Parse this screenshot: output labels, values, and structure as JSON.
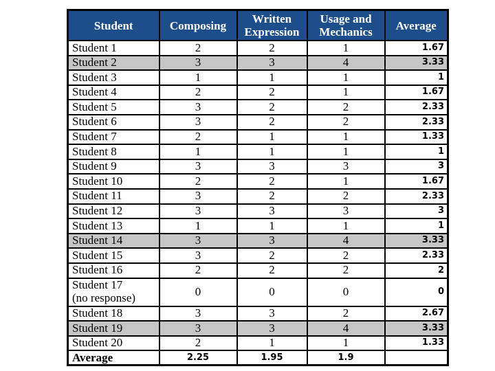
{
  "colors": {
    "header_bg": "#1E4D8C",
    "header_text": "#FFFFFF",
    "row_bg": "#FFFFFF",
    "row_highlight_bg": "#C6C6C6",
    "border": "#000000",
    "text": "#000000"
  },
  "table": {
    "columns": [
      "Student",
      "Composing",
      "Written Expression",
      "Usage and Mechanics",
      "Average"
    ],
    "rows": [
      {
        "name": "Student 1",
        "composing": "2",
        "written": "2",
        "usage": "1",
        "average": "1.67",
        "highlight": false
      },
      {
        "name": "Student 2",
        "composing": "3",
        "written": "3",
        "usage": "4",
        "average": "3.33",
        "highlight": true
      },
      {
        "name": "Student 3",
        "composing": "1",
        "written": "1",
        "usage": "1",
        "average": "1",
        "highlight": false
      },
      {
        "name": "Student 4",
        "composing": "2",
        "written": "2",
        "usage": "1",
        "average": "1.67",
        "highlight": false
      },
      {
        "name": "Student 5",
        "composing": "3",
        "written": "2",
        "usage": "2",
        "average": "2.33",
        "highlight": false
      },
      {
        "name": "Student 6",
        "composing": "3",
        "written": "2",
        "usage": "2",
        "average": "2.33",
        "highlight": false
      },
      {
        "name": "Student 7",
        "composing": "2",
        "written": "1",
        "usage": "1",
        "average": "1.33",
        "highlight": false
      },
      {
        "name": "Student 8",
        "composing": "1",
        "written": "1",
        "usage": "1",
        "average": "1",
        "highlight": false
      },
      {
        "name": "Student 9",
        "composing": "3",
        "written": "3",
        "usage": "3",
        "average": "3",
        "highlight": false
      },
      {
        "name": "Student 10",
        "composing": "2",
        "written": "2",
        "usage": "1",
        "average": "1.67",
        "highlight": false
      },
      {
        "name": "Student 11",
        "composing": "3",
        "written": "2",
        "usage": "2",
        "average": "2.33",
        "highlight": false
      },
      {
        "name": "Student 12",
        "composing": "3",
        "written": "3",
        "usage": "3",
        "average": "3",
        "highlight": false
      },
      {
        "name": "Student 13",
        "composing": "1",
        "written": "1",
        "usage": "1",
        "average": "1",
        "highlight": false
      },
      {
        "name": "Student 14",
        "composing": "3",
        "written": "3",
        "usage": "4",
        "average": "3.33",
        "highlight": true
      },
      {
        "name": "Student 15",
        "composing": "3",
        "written": "2",
        "usage": "2",
        "average": "2.33",
        "highlight": false
      },
      {
        "name": "Student 16",
        "composing": "2",
        "written": "2",
        "usage": "2",
        "average": "2",
        "highlight": false
      },
      {
        "name": "Student 17",
        "name_line2": "(no response)",
        "composing": "0",
        "written": "0",
        "usage": "0",
        "average": "0",
        "highlight": false,
        "tall": true
      },
      {
        "name": "Student 18",
        "composing": "3",
        "written": "3",
        "usage": "2",
        "average": "2.67",
        "highlight": false
      },
      {
        "name": "Student 19",
        "composing": "3",
        "written": "3",
        "usage": "4",
        "average": "3.33",
        "highlight": true
      },
      {
        "name": "Student 20",
        "composing": "2",
        "written": "1",
        "usage": "1",
        "average": "1.33",
        "highlight": false
      }
    ],
    "footer": {
      "name": "Average",
      "composing": "2.25",
      "written": "1.95",
      "usage": "1.9",
      "average": ""
    }
  }
}
